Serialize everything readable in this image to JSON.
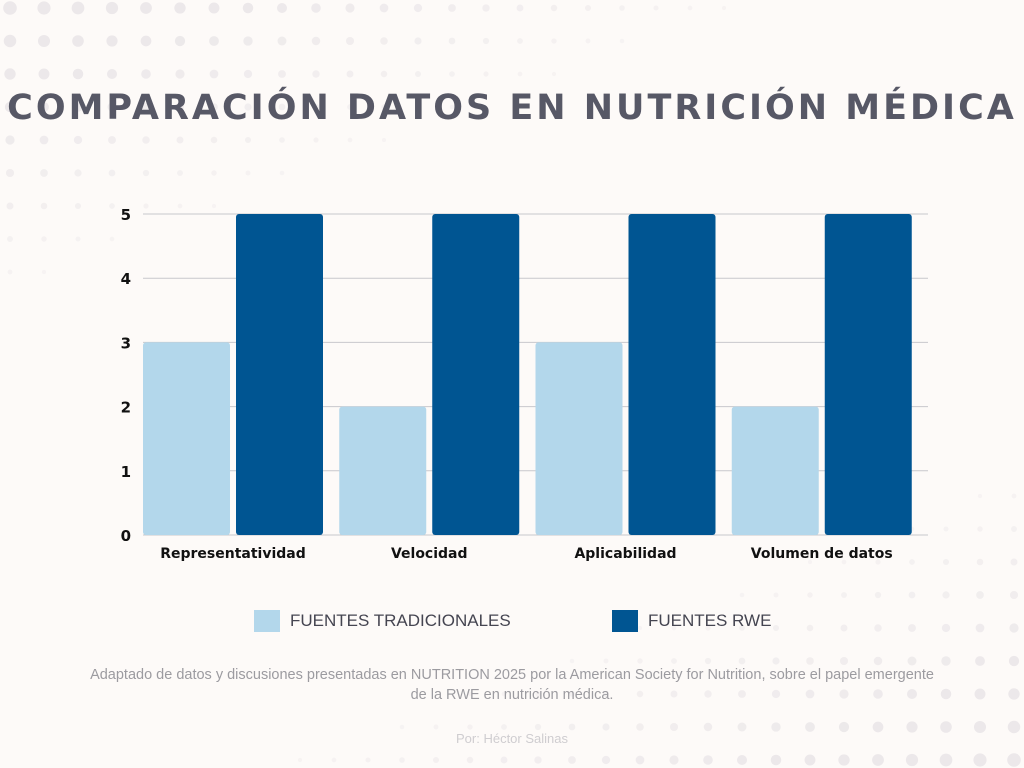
{
  "title": "COMPARACIÓN DATOS EN NUTRICIÓN MÉDICA",
  "source_note": "Adaptado de datos y discusiones presentadas en NUTRITION 2025 por la American Society for Nutrition, sobre el papel emergente de la RWE en nutrición médica.",
  "author": "Por: Héctor Salinas",
  "colors": {
    "background": "#fdfaf8",
    "title": "#575866",
    "tradicionales": "#b3d7eb",
    "rwe": "#005592"
  },
  "chart_data": {
    "type": "bar",
    "title": "COMPARACIÓN DATOS EN NUTRICIÓN MÉDICA",
    "xlabel": "",
    "ylabel": "",
    "categories": [
      "Representatividad",
      "Velocidad",
      "Aplicabilidad",
      "Volumen de datos"
    ],
    "series": [
      {
        "name": "FUENTES TRADICIONALES",
        "values": [
          3,
          2,
          3,
          2
        ],
        "color": "#b3d7eb"
      },
      {
        "name": "FUENTES RWE",
        "values": [
          5,
          5,
          5,
          5
        ],
        "color": "#005592"
      }
    ],
    "ylim": [
      0,
      5
    ],
    "yticks": [
      0,
      1,
      2,
      3,
      4,
      5
    ],
    "grid": true,
    "legend_position": "bottom"
  }
}
